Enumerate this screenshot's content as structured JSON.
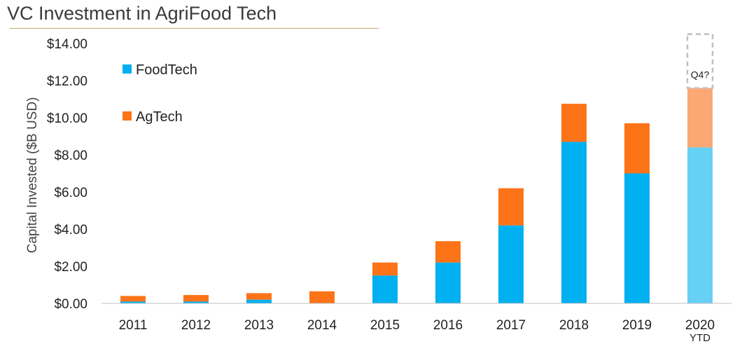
{
  "chart_data": {
    "type": "bar",
    "stacked": true,
    "title": "VC Investment in AgriFood Tech",
    "ylabel": "Capital Invested ($B USD)",
    "xlabel": "",
    "ylim": [
      0,
      14
    ],
    "ytick_labels": [
      "$0.00",
      "$2.00",
      "$4.00",
      "$6.00",
      "$8.00",
      "$10.00",
      "$12.00",
      "$14.00"
    ],
    "categories": [
      "2011",
      "2012",
      "2013",
      "2014",
      "2015",
      "2016",
      "2017",
      "2018",
      "2019",
      "2020"
    ],
    "category_sublabels": [
      "",
      "",
      "",
      "",
      "",
      "",
      "",
      "",
      "",
      "YTD"
    ],
    "series": [
      {
        "name": "FoodTech",
        "color": "#00b0f0",
        "highlight_last_color": "#66d0f5",
        "values": [
          0.1,
          0.1,
          0.2,
          0.0,
          1.5,
          2.2,
          4.2,
          8.7,
          7.0,
          8.4
        ]
      },
      {
        "name": "AgTech",
        "color": "#fd7318",
        "highlight_last_color": "#fca874",
        "values": [
          0.3,
          0.35,
          0.35,
          0.65,
          0.7,
          1.15,
          2.0,
          2.05,
          2.7,
          3.2
        ]
      }
    ],
    "annotation": {
      "text": "Q4?",
      "category": "2020",
      "top_value": 14.5
    },
    "legend_position": "top-left",
    "grid": false
  }
}
